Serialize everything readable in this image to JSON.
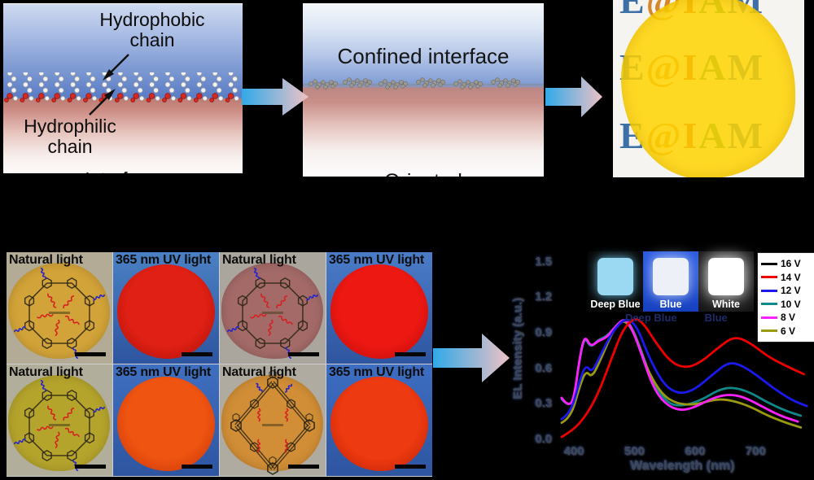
{
  "scheme": {
    "panel1": {
      "hydrophobic_label": "Hydrophobic chain",
      "hydrophilic_label": "Hydrophilic chain",
      "clipped_caption": "Interface"
    },
    "panel2": {
      "title": "Confined interface",
      "clipped_caption": "Oriented"
    },
    "panel3": {
      "watermark_letters": [
        {
          "char": "E",
          "color": "#3e70a8"
        },
        {
          "char": "@",
          "color": "#d8862c"
        },
        {
          "char": "I",
          "color": "#cc4420"
        },
        {
          "char": "A",
          "color": "#3f8f4f"
        },
        {
          "char": "M",
          "color": "#3e70a8"
        }
      ],
      "film_color": "rgba(255,212,0,0.85)"
    }
  },
  "arrows": {
    "gradient_from": "#2fa9e9",
    "gradient_to": "#efc2c6"
  },
  "montage": {
    "tiles": [
      {
        "label": "Natural light",
        "mode": "natural",
        "bg": "#b4ab97",
        "film_color": "#d2a338",
        "structure": "hex"
      },
      {
        "label": "365 nm UV light",
        "mode": "uv",
        "bg": "#4a80c4",
        "film_color": "#e02014",
        "film_edge_color": "#a50d06"
      },
      {
        "label": "Natural light",
        "mode": "natural",
        "bg": "#aaa69e",
        "film_color": "#a36a68",
        "structure": "hex"
      },
      {
        "label": "365 nm UV light",
        "mode": "uv",
        "bg": "#4a7cc8",
        "film_color": "#ee1812",
        "film_edge_color": "#b30a08"
      },
      {
        "label": "Natural light",
        "mode": "natural",
        "bg": "#b2ae9c",
        "film_color": "#b5a42c",
        "structure": "hex"
      },
      {
        "label": "365 nm UV light",
        "mode": "uv",
        "bg": "#3f6fc0",
        "film_color": "#ef5410",
        "film_edge_color": "#c03008"
      },
      {
        "label": "Natural light",
        "mode": "natural",
        "bg": "#b0aba0",
        "film_color": "#d18e36",
        "structure": "diamond"
      },
      {
        "label": "365 nm UV light",
        "mode": "uv",
        "bg": "#3d6ec2",
        "film_color": "#ee3a10",
        "film_edge_color": "#b81e06"
      }
    ]
  },
  "inset": {
    "devices": [
      {
        "label": "Deep Blue",
        "screen_color": "#9bd9f3"
      },
      {
        "label": "Blue",
        "screen_color": "#eef0f8"
      },
      {
        "label": "White",
        "screen_color": "#ffffff"
      }
    ],
    "sub_labels": [
      "Deep Blue",
      "Blue"
    ]
  },
  "chart_data": {
    "type": "line",
    "title": "",
    "xlabel": "Wavelength (nm)",
    "ylabel": "EL Intensity (a.u.)",
    "xlim": [
      380,
      790
    ],
    "ylim": [
      0,
      1.5
    ],
    "xticks": [
      400,
      500,
      600,
      700
    ],
    "yticks": [
      0,
      0.3,
      0.6,
      0.9,
      1.2,
      1.5
    ],
    "grid": false,
    "legend_position": "top-right",
    "series": [
      {
        "name": "16 V",
        "color": "#000000",
        "visible": false,
        "x": [],
        "y": []
      },
      {
        "name": "14 V",
        "color": "#ee0000",
        "x": [
          380,
          400,
          420,
          440,
          460,
          480,
          500,
          515,
          535,
          560,
          585,
          610,
          640,
          665,
          690,
          720,
          750,
          780
        ],
        "y": [
          0.02,
          0.08,
          0.2,
          0.38,
          0.65,
          0.92,
          1.03,
          0.98,
          0.82,
          0.65,
          0.6,
          0.65,
          0.78,
          0.87,
          0.82,
          0.7,
          0.62,
          0.55
        ]
      },
      {
        "name": "12 V",
        "color": "#1a1aee",
        "x": [
          380,
          395,
          410,
          420,
          430,
          445,
          465,
          487,
          505,
          525,
          550,
          575,
          600,
          630,
          655,
          675,
          700,
          730,
          760,
          785
        ],
        "y": [
          0.17,
          0.22,
          0.5,
          0.63,
          0.56,
          0.72,
          0.92,
          1.03,
          0.95,
          0.68,
          0.45,
          0.38,
          0.42,
          0.55,
          0.65,
          0.63,
          0.55,
          0.43,
          0.33,
          0.28
        ]
      },
      {
        "name": "10 V",
        "color": "#0e8888",
        "x": [
          380,
          390,
          400,
          410,
          418,
          428,
          440,
          455,
          470,
          483,
          495,
          510,
          530,
          555,
          580,
          610,
          640,
          662,
          690,
          720,
          750,
          775
        ],
        "y": [
          0.34,
          0.28,
          0.33,
          0.69,
          0.87,
          0.77,
          0.84,
          0.87,
          0.96,
          1.02,
          0.96,
          0.77,
          0.48,
          0.3,
          0.28,
          0.33,
          0.42,
          0.44,
          0.4,
          0.31,
          0.24,
          0.2
        ]
      },
      {
        "name": "8 V",
        "color": "#ff20ff",
        "x": [
          380,
          390,
          400,
          410,
          418,
          428,
          440,
          455,
          470,
          483,
          495,
          510,
          530,
          550,
          575,
          600,
          630,
          655,
          680,
          710,
          740,
          770
        ],
        "y": [
          0.35,
          0.28,
          0.33,
          0.7,
          0.88,
          0.78,
          0.83,
          0.86,
          0.96,
          1.02,
          0.95,
          0.75,
          0.45,
          0.3,
          0.24,
          0.27,
          0.35,
          0.38,
          0.36,
          0.28,
          0.2,
          0.15
        ]
      },
      {
        "name": "6 V",
        "color": "#9a9a10",
        "x": [
          380,
          395,
          410,
          420,
          430,
          445,
          465,
          483,
          500,
          520,
          545,
          570,
          600,
          635,
          660,
          690,
          720,
          750,
          775
        ],
        "y": [
          0.14,
          0.18,
          0.45,
          0.58,
          0.52,
          0.68,
          0.92,
          1.02,
          0.9,
          0.6,
          0.38,
          0.3,
          0.29,
          0.34,
          0.33,
          0.28,
          0.2,
          0.14,
          0.1
        ]
      }
    ]
  }
}
